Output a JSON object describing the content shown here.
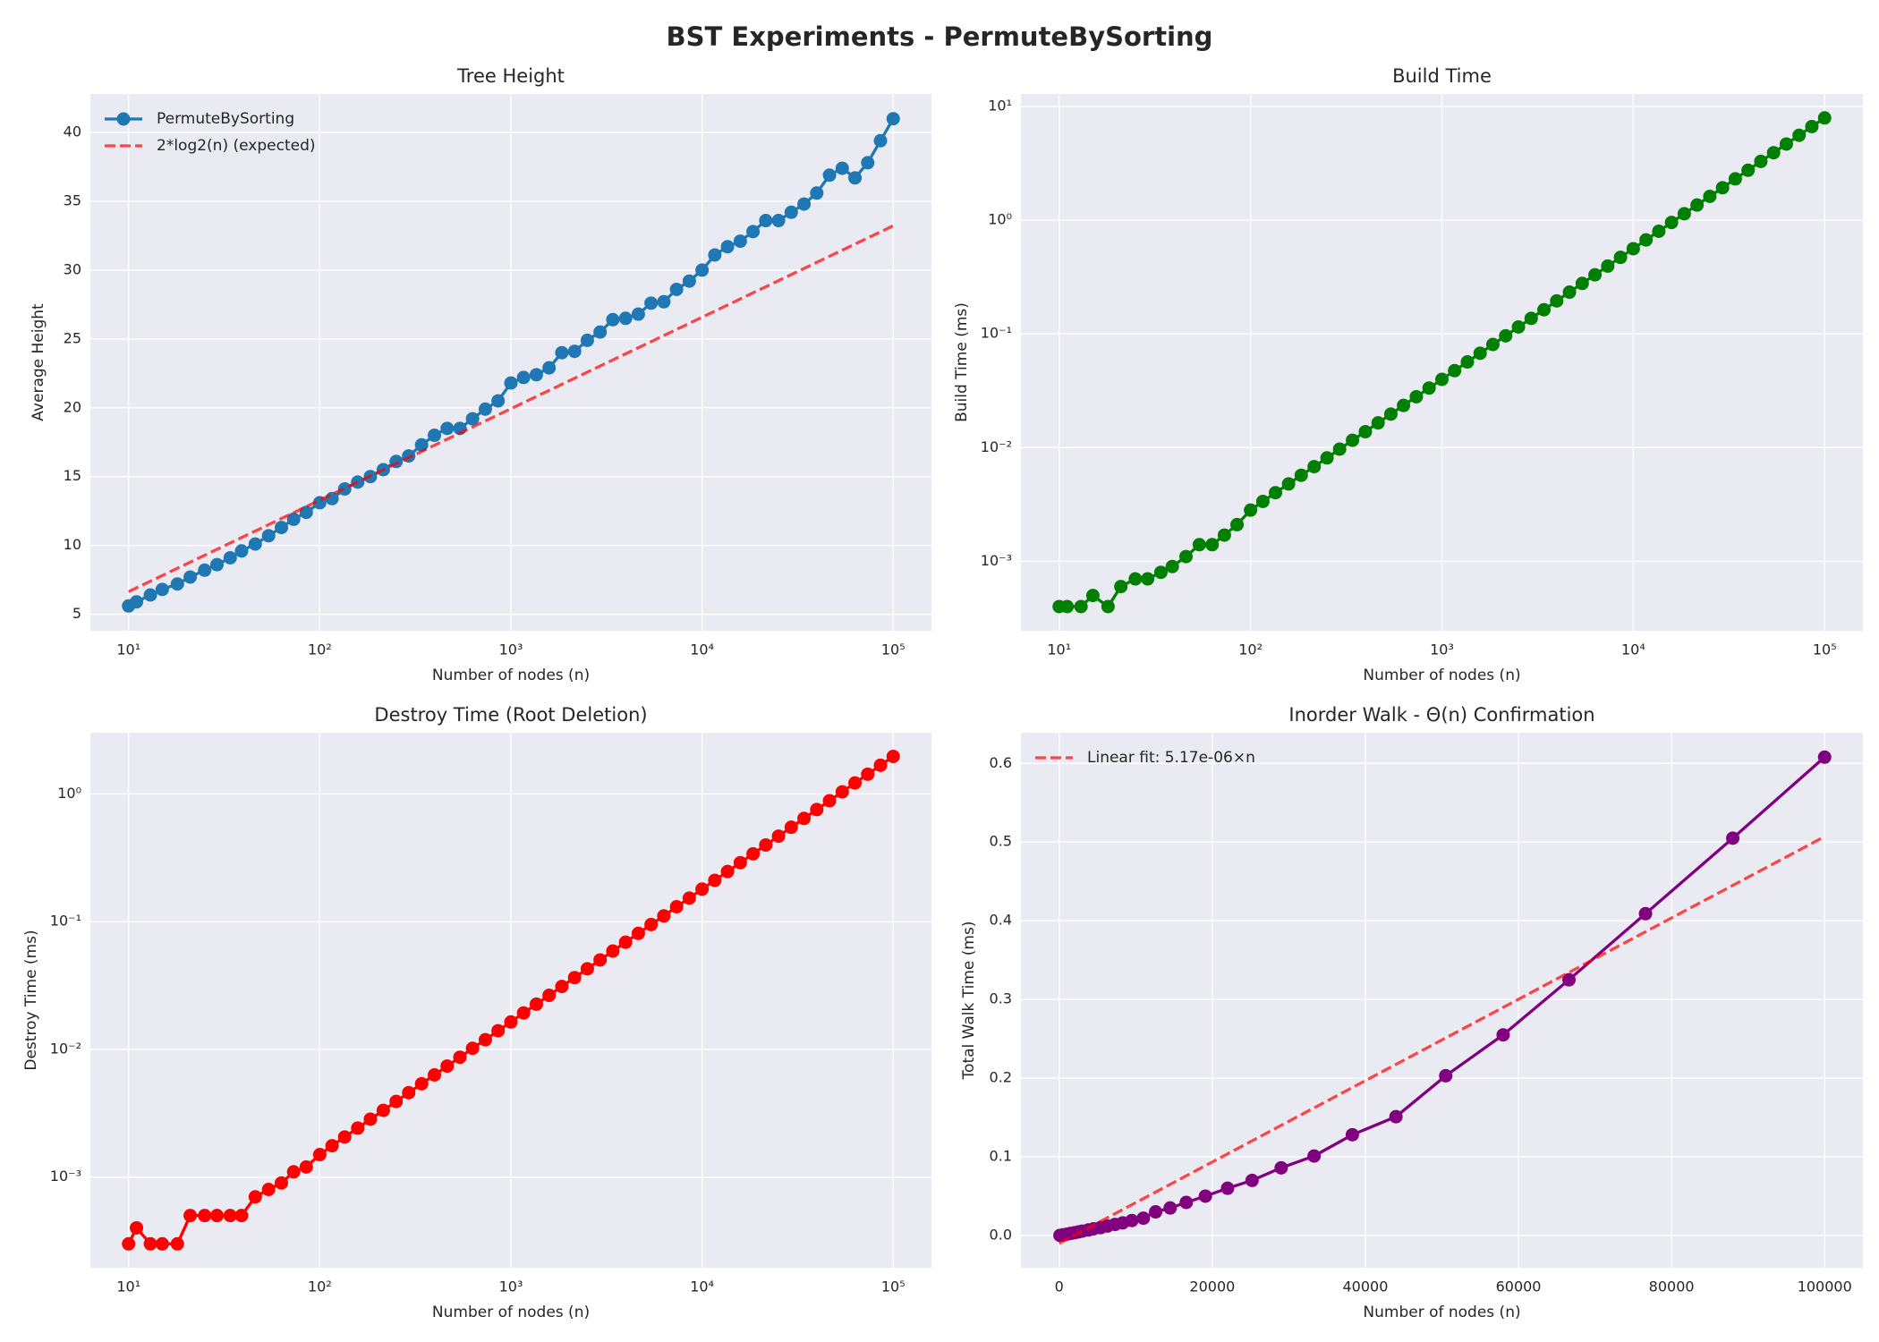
{
  "title": "BST Experiments - PermuteBySorting",
  "chart_data": [
    {
      "type": "line",
      "title": "Tree Height",
      "xlabel": "Number of nodes (n)",
      "ylabel": "Average Height",
      "xscale": "log",
      "yscale": "linear",
      "grid": true,
      "legend": "upper left",
      "xlim": [
        6.31,
        158489
      ],
      "ylim": [
        3.8,
        42.8
      ],
      "xticks": [
        {
          "value": 10,
          "label": "10¹"
        },
        {
          "value": 100,
          "label": "10²"
        },
        {
          "value": 1000,
          "label": "10³"
        },
        {
          "value": 10000,
          "label": "10⁴"
        },
        {
          "value": 100000,
          "label": "10⁵"
        }
      ],
      "yticks": [
        5,
        10,
        15,
        20,
        25,
        30,
        35,
        40
      ],
      "series": [
        {
          "name": "PermuteBySorting",
          "color": "#1f77b4",
          "marker": "o",
          "linestyle": "solid",
          "x": [
            10,
            11,
            13,
            15,
            18,
            21,
            25,
            29,
            34,
            39,
            46,
            54,
            63,
            73,
            85,
            100,
            116,
            135,
            158,
            184,
            215,
            251,
            292,
            341,
            398,
            464,
            541,
            630,
            735,
            857,
            1000,
            1165,
            1359,
            1584,
            1847,
            2154,
            2511,
            2928,
            3414,
            3981,
            4641,
            5411,
            6309,
            7356,
            8576,
            10000,
            11659,
            13593,
            15848,
            18478,
            21544,
            25118,
            29286,
            34145,
            39810,
            46415,
            54116,
            63095,
            73564,
            85769,
            100000
          ],
          "values": [
            5.6,
            5.9,
            6.4,
            6.8,
            7.2,
            7.7,
            8.2,
            8.6,
            9.1,
            9.6,
            10.1,
            10.7,
            11.3,
            11.9,
            12.4,
            13.1,
            13.4,
            14.1,
            14.6,
            15.0,
            15.5,
            16.1,
            16.5,
            17.3,
            18.0,
            18.5,
            18.5,
            19.2,
            19.9,
            20.5,
            21.8,
            22.2,
            22.4,
            22.9,
            24.0,
            24.1,
            24.9,
            25.5,
            26.4,
            26.5,
            26.8,
            27.6,
            27.7,
            28.6,
            29.2,
            30.0,
            31.1,
            31.7,
            32.1,
            32.8,
            33.6,
            33.6,
            34.2,
            34.8,
            35.6,
            36.9,
            37.4,
            36.7,
            37.8,
            39.4,
            41.0
          ]
        },
        {
          "name": "2*log2(n) (expected)",
          "color": "#ff0000",
          "alpha": 0.7,
          "marker": "none",
          "linestyle": "dashed",
          "x": [
            10,
            100000
          ],
          "values": [
            6.64,
            33.22
          ]
        }
      ]
    },
    {
      "type": "line",
      "title": "Build Time",
      "xlabel": "Number of nodes (n)",
      "ylabel": "Build Time (ms)",
      "xscale": "log",
      "yscale": "log",
      "grid": true,
      "xlim": [
        6.31,
        158489
      ],
      "ylim": [
        0.000245,
        12.9
      ],
      "xticks": [
        {
          "value": 10,
          "label": "10¹"
        },
        {
          "value": 100,
          "label": "10²"
        },
        {
          "value": 1000,
          "label": "10³"
        },
        {
          "value": 10000,
          "label": "10⁴"
        },
        {
          "value": 100000,
          "label": "10⁵"
        }
      ],
      "yticks": [
        {
          "value": 0.001,
          "label": "10⁻³"
        },
        {
          "value": 0.01,
          "label": "10⁻²"
        },
        {
          "value": 0.1,
          "label": "10⁻¹"
        },
        {
          "value": 1,
          "label": "10⁰"
        },
        {
          "value": 10,
          "label": "10¹"
        }
      ],
      "series": [
        {
          "color": "#008000",
          "marker": "o",
          "linestyle": "solid",
          "x": [
            10,
            11,
            13,
            15,
            18,
            21,
            25,
            29,
            34,
            39,
            46,
            54,
            63,
            73,
            85,
            100,
            116,
            135,
            158,
            184,
            215,
            251,
            292,
            341,
            398,
            464,
            541,
            630,
            735,
            857,
            1000,
            1165,
            1359,
            1584,
            1847,
            2154,
            2511,
            2928,
            3414,
            3981,
            4641,
            5411,
            6309,
            7356,
            8576,
            10000,
            11659,
            13593,
            15848,
            18478,
            21544,
            25118,
            29286,
            34145,
            39810,
            46415,
            54116,
            63095,
            73564,
            85769,
            100000
          ],
          "values": [
            0.0004,
            0.0004,
            0.0004,
            0.0005,
            0.0004,
            0.0006,
            0.0007,
            0.0007,
            0.0008,
            0.0009,
            0.0011,
            0.0014,
            0.0014,
            0.0017,
            0.0021,
            0.00282,
            0.00336,
            0.00401,
            0.00479,
            0.00571,
            0.0068,
            0.00812,
            0.00969,
            0.0116,
            0.0138,
            0.0165,
            0.0197,
            0.0235,
            0.028,
            0.0334,
            0.0398,
            0.0475,
            0.0567,
            0.0676,
            0.0807,
            0.0962,
            0.115,
            0.137,
            0.163,
            0.195,
            0.233,
            0.278,
            0.331,
            0.395,
            0.471,
            0.562,
            0.671,
            0.8,
            0.955,
            1.14,
            1.36,
            1.62,
            1.93,
            2.31,
            2.75,
            3.29,
            3.92,
            4.68,
            5.58,
            6.66,
            7.94
          ]
        }
      ]
    },
    {
      "type": "line",
      "title": "Destroy Time (Root Deletion)",
      "xlabel": "Number of nodes (n)",
      "ylabel": "Destroy Time (ms)",
      "xscale": "log",
      "yscale": "log",
      "grid": true,
      "xlim": [
        6.31,
        158489
      ],
      "ylim": [
        0.000195,
        3.02
      ],
      "xticks": [
        {
          "value": 10,
          "label": "10¹"
        },
        {
          "value": 100,
          "label": "10²"
        },
        {
          "value": 1000,
          "label": "10³"
        },
        {
          "value": 10000,
          "label": "10⁴"
        },
        {
          "value": 100000,
          "label": "10⁵"
        }
      ],
      "yticks": [
        {
          "value": 0.001,
          "label": "10⁻³"
        },
        {
          "value": 0.01,
          "label": "10⁻²"
        },
        {
          "value": 0.1,
          "label": "10⁻¹"
        },
        {
          "value": 1,
          "label": "10⁰"
        }
      ],
      "series": [
        {
          "color": "#ff0000",
          "marker": "o",
          "linestyle": "solid",
          "x": [
            10,
            11,
            13,
            15,
            18,
            21,
            25,
            29,
            34,
            39,
            46,
            54,
            63,
            73,
            85,
            100,
            116,
            135,
            158,
            184,
            215,
            251,
            292,
            341,
            398,
            464,
            541,
            630,
            735,
            857,
            1000,
            1165,
            1359,
            1584,
            1847,
            2154,
            2511,
            2928,
            3414,
            3981,
            4641,
            5411,
            6309,
            7356,
            8576,
            10000,
            11659,
            13593,
            15848,
            18478,
            21544,
            25118,
            29286,
            34145,
            39810,
            46415,
            54116,
            63095,
            73564,
            85769,
            100000
          ],
          "values": [
            0.0003,
            0.0004,
            0.0003,
            0.0003,
            0.0003,
            0.0005,
            0.0005,
            0.0005,
            0.0005,
            0.0005,
            0.0007,
            0.0008,
            0.0009,
            0.0011,
            0.0012,
            0.0015,
            0.00176,
            0.00206,
            0.00242,
            0.00284,
            0.00333,
            0.00391,
            0.00458,
            0.00538,
            0.00631,
            0.0074,
            0.00868,
            0.0102,
            0.0119,
            0.014,
            0.0164,
            0.0193,
            0.0226,
            0.0265,
            0.0311,
            0.0365,
            0.0428,
            0.0502,
            0.0589,
            0.0691,
            0.081,
            0.095,
            0.111,
            0.131,
            0.153,
            0.18,
            0.211,
            0.247,
            0.29,
            0.34,
            0.399,
            0.468,
            0.549,
            0.644,
            0.755,
            0.886,
            1.04,
            1.22,
            1.43,
            1.68,
            1.97
          ]
        }
      ]
    },
    {
      "type": "line",
      "title": "Inorder Walk - Θ(n) Confirmation",
      "xlabel": "Number of nodes (n)",
      "ylabel": "Total Walk Time (ms)",
      "xscale": "linear",
      "yscale": "linear",
      "grid": true,
      "legend": "upper left",
      "xlim": [
        -5000,
        105000
      ],
      "ylim": [
        -0.041,
        0.639
      ],
      "xticks": [
        0,
        20000,
        40000,
        60000,
        80000,
        100000
      ],
      "yticks": [
        {
          "value": 0,
          "label": "0.0"
        },
        0.1,
        0.2,
        0.3,
        0.4,
        0.5,
        0.6
      ],
      "series": [
        {
          "color": "#800080",
          "marker": "o",
          "linestyle": "solid",
          "x": [
            100,
            500,
            1000,
            1500,
            2000,
            2500,
            3000,
            3800,
            4500,
            5400,
            6300,
            7300,
            8300,
            9500,
            11000,
            12600,
            14500,
            16600,
            19100,
            22000,
            25200,
            29000,
            33300,
            38300,
            44000,
            50500,
            58000,
            66600,
            76600,
            88000,
            100000
          ],
          "values": [
            0.0001,
            0.0008,
            0.0017,
            0.0026,
            0.0035,
            0.0045,
            0.0055,
            0.007,
            0.0085,
            0.01,
            0.012,
            0.014,
            0.016,
            0.019,
            0.022,
            0.03,
            0.035,
            0.042,
            0.05,
            0.06,
            0.07,
            0.086,
            0.101,
            0.128,
            0.151,
            0.203,
            0.255,
            0.325,
            0.409,
            0.505,
            0.608
          ]
        },
        {
          "name": "Linear fit: 5.17e-06×n",
          "color": "#ff0000",
          "alpha": 0.7,
          "marker": "none",
          "linestyle": "dashed",
          "x": [
            0,
            100000
          ],
          "values": [
            -0.01,
            0.507
          ]
        }
      ]
    }
  ]
}
